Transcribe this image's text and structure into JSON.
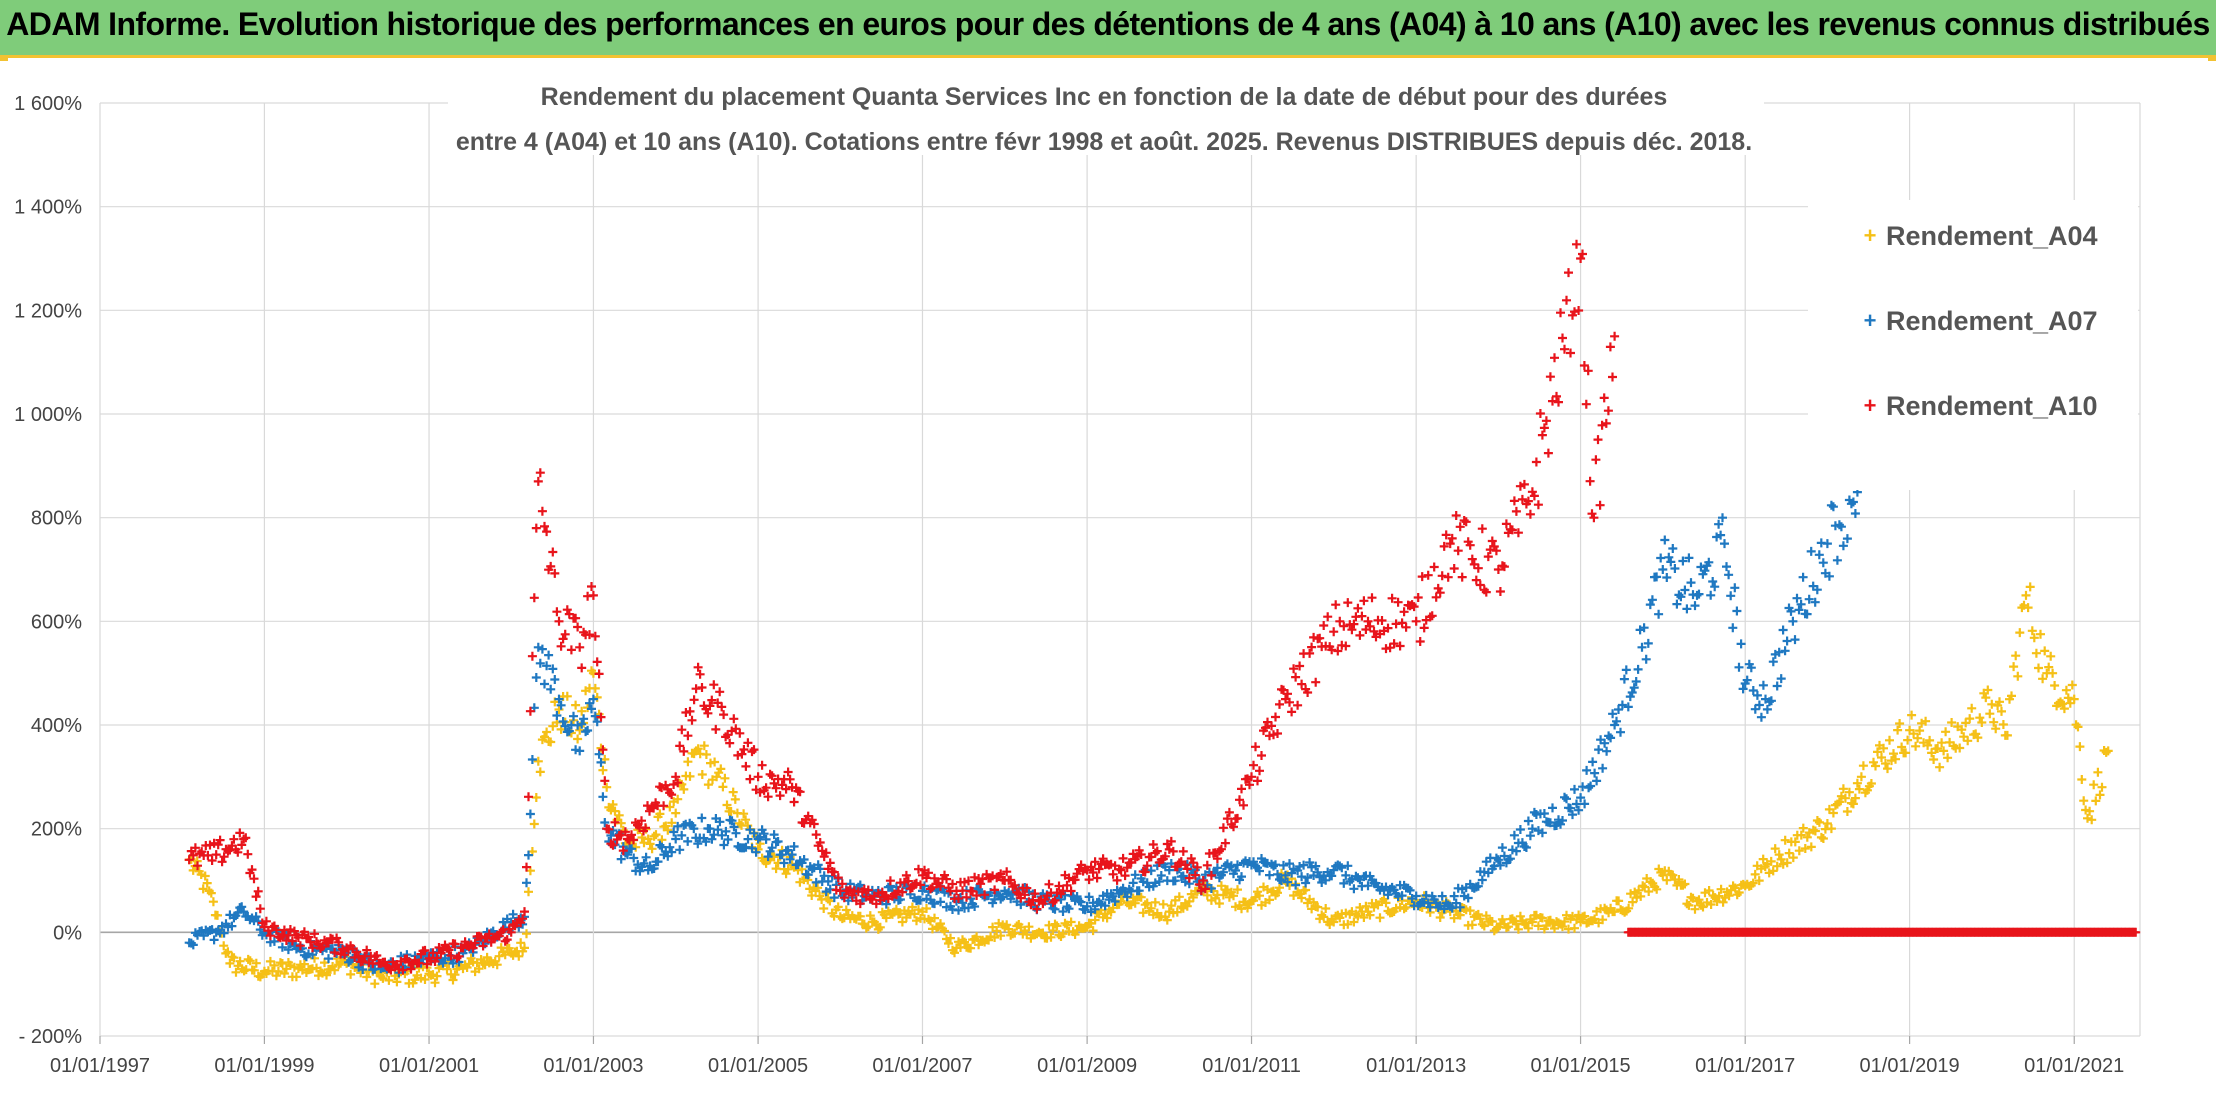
{
  "header": {
    "title": "ADAM Informe. Evolution historique des performances en euros pour des détentions de 4 ans (A04) à 10 ans (A10) avec les revenus connus distribués"
  },
  "colors": {
    "banner": "#7fcc7a",
    "accent": "#f2c232",
    "A04": "#f5c017",
    "A07": "#1f78c1",
    "A10": "#e8141b"
  },
  "chart_data": {
    "type": "scatter",
    "title_lines": [
      "Rendement du placement Quanta Services Inc en fonction de la date de début pour des durées",
      "entre 4 (A04) et 10 ans (A10). Cotations entre févr 1998 et août. 2025. Revenus DISTRIBUES depuis déc. 2018."
    ],
    "xlabel": "",
    "ylabel": "",
    "x_range": [
      "1997-01-01",
      "2021-10-20"
    ],
    "y_range": [
      -200,
      1600
    ],
    "y_ticks": [
      -200,
      0,
      200,
      400,
      600,
      800,
      1000,
      1200,
      1400,
      1600
    ],
    "y_tick_labels": [
      "- 200%",
      "0%",
      "200%",
      "400%",
      "600%",
      "800%",
      "1 000%",
      "1 200%",
      "1 400%",
      "1 600%"
    ],
    "x_ticks": [
      "1997-01-01",
      "1999-01-01",
      "2001-01-01",
      "2003-01-01",
      "2005-01-01",
      "2007-01-01",
      "2009-01-01",
      "2011-01-01",
      "2013-01-01",
      "2015-01-01",
      "2017-01-01",
      "2019-01-01",
      "2021-01-01"
    ],
    "x_tick_labels": [
      "01/01/1997",
      "01/01/1999",
      "01/01/2001",
      "01/01/2003",
      "01/01/2005",
      "01/01/2007",
      "01/01/2009",
      "01/01/2011",
      "01/01/2013",
      "01/01/2015",
      "01/01/2017",
      "01/01/2019",
      "01/01/2021"
    ],
    "grid": true,
    "legend_position": "top-right",
    "series": [
      {
        "name": "Rendement_A04",
        "color": "#f5c017",
        "points": [
          [
            "1998-02-01",
            140
          ],
          [
            "1998-05-01",
            80
          ],
          [
            "1998-08-01",
            -60
          ],
          [
            "1999-01-01",
            -75
          ],
          [
            "1999-06-01",
            -70
          ],
          [
            "2000-01-01",
            -60
          ],
          [
            "2000-06-01",
            -85
          ],
          [
            "2001-01-01",
            -80
          ],
          [
            "2001-06-01",
            -70
          ],
          [
            "2002-01-01",
            -40
          ],
          [
            "2002-03-01",
            -30
          ],
          [
            "2002-05-01",
            330
          ],
          [
            "2002-08-01",
            430
          ],
          [
            "2002-11-01",
            390
          ],
          [
            "2003-01-01",
            500
          ],
          [
            "2003-03-01",
            280
          ],
          [
            "2003-06-01",
            170
          ],
          [
            "2003-09-01",
            180
          ],
          [
            "2004-01-01",
            230
          ],
          [
            "2004-04-01",
            350
          ],
          [
            "2004-07-01",
            300
          ],
          [
            "2004-10-01",
            230
          ],
          [
            "2005-01-01",
            160
          ],
          [
            "2005-06-01",
            130
          ],
          [
            "2005-10-01",
            70
          ],
          [
            "2006-01-01",
            30
          ],
          [
            "2006-06-01",
            20
          ],
          [
            "2007-01-01",
            40
          ],
          [
            "2007-06-01",
            -30
          ],
          [
            "2008-01-01",
            10
          ],
          [
            "2008-06-01",
            0
          ],
          [
            "2009-01-01",
            10
          ],
          [
            "2009-06-01",
            60
          ],
          [
            "2010-01-01",
            40
          ],
          [
            "2010-06-01",
            80
          ],
          [
            "2011-01-01",
            60
          ],
          [
            "2011-06-01",
            100
          ],
          [
            "2012-01-01",
            20
          ],
          [
            "2012-06-01",
            40
          ],
          [
            "2013-01-01",
            60
          ],
          [
            "2013-06-01",
            40
          ],
          [
            "2014-01-01",
            10
          ],
          [
            "2014-06-01",
            20
          ],
          [
            "2015-01-01",
            20
          ],
          [
            "2015-06-01",
            40
          ],
          [
            "2016-01-01",
            110
          ],
          [
            "2016-06-01",
            60
          ],
          [
            "2017-01-01",
            90
          ],
          [
            "2017-06-01",
            150
          ],
          [
            "2018-01-01",
            210
          ],
          [
            "2018-06-01",
            300
          ],
          [
            "2019-01-01",
            390
          ],
          [
            "2019-06-01",
            350
          ],
          [
            "2020-01-01",
            440
          ],
          [
            "2020-03-01",
            380
          ],
          [
            "2020-06-01",
            650
          ],
          [
            "2020-09-01",
            500
          ],
          [
            "2021-01-01",
            450
          ],
          [
            "2021-03-01",
            220
          ],
          [
            "2021-06-01",
            350
          ]
        ]
      },
      {
        "name": "Rendement_A07",
        "color": "#1f78c1",
        "points": [
          [
            "1998-02-01",
            -20
          ],
          [
            "1998-06-01",
            0
          ],
          [
            "1998-10-01",
            40
          ],
          [
            "1999-01-01",
            0
          ],
          [
            "1999-06-01",
            -30
          ],
          [
            "2000-01-01",
            -40
          ],
          [
            "2000-06-01",
            -70
          ],
          [
            "2001-01-01",
            -50
          ],
          [
            "2001-06-01",
            -40
          ],
          [
            "2002-01-01",
            20
          ],
          [
            "2002-03-01",
            30
          ],
          [
            "2002-05-01",
            550
          ],
          [
            "2002-08-01",
            450
          ],
          [
            "2002-11-01",
            350
          ],
          [
            "2003-01-01",
            450
          ],
          [
            "2003-03-01",
            200
          ],
          [
            "2003-06-01",
            150
          ],
          [
            "2003-09-01",
            120
          ],
          [
            "2004-01-01",
            180
          ],
          [
            "2004-06-01",
            200
          ],
          [
            "2005-01-01",
            180
          ],
          [
            "2005-06-01",
            150
          ],
          [
            "2006-01-01",
            80
          ],
          [
            "2006-06-01",
            70
          ],
          [
            "2007-01-01",
            80
          ],
          [
            "2007-06-01",
            60
          ],
          [
            "2008-01-01",
            80
          ],
          [
            "2008-06-01",
            60
          ],
          [
            "2009-01-01",
            50
          ],
          [
            "2009-06-01",
            80
          ],
          [
            "2010-01-01",
            120
          ],
          [
            "2010-06-01",
            100
          ],
          [
            "2011-01-01",
            130
          ],
          [
            "2011-06-01",
            110
          ],
          [
            "2012-01-01",
            120
          ],
          [
            "2012-06-01",
            90
          ],
          [
            "2013-01-01",
            70
          ],
          [
            "2013-06-01",
            50
          ],
          [
            "2014-01-01",
            140
          ],
          [
            "2014-06-01",
            200
          ],
          [
            "2015-01-01",
            260
          ],
          [
            "2015-06-01",
            400
          ],
          [
            "2015-10-01",
            550
          ],
          [
            "2016-01-01",
            700
          ],
          [
            "2016-06-01",
            650
          ],
          [
            "2016-10-01",
            750
          ],
          [
            "2017-01-01",
            480
          ],
          [
            "2017-04-01",
            450
          ],
          [
            "2017-08-01",
            600
          ],
          [
            "2018-01-01",
            750
          ],
          [
            "2018-06-01",
            880
          ]
        ]
      },
      {
        "name": "Rendement_A10",
        "color": "#e8141b",
        "points": [
          [
            "1998-02-01",
            140
          ],
          [
            "1998-06-01",
            150
          ],
          [
            "1998-10-01",
            180
          ],
          [
            "1999-01-01",
            10
          ],
          [
            "1999-06-01",
            -10
          ],
          [
            "2000-01-01",
            -30
          ],
          [
            "2000-06-01",
            -60
          ],
          [
            "2001-01-01",
            -50
          ],
          [
            "2001-06-01",
            -30
          ],
          [
            "2002-01-01",
            0
          ],
          [
            "2002-03-01",
            40
          ],
          [
            "2002-05-01",
            870
          ],
          [
            "2002-08-01",
            600
          ],
          [
            "2002-11-01",
            550
          ],
          [
            "2003-01-01",
            650
          ],
          [
            "2003-03-01",
            200
          ],
          [
            "2003-06-01",
            180
          ],
          [
            "2004-01-01",
            300
          ],
          [
            "2004-04-01",
            470
          ],
          [
            "2004-08-01",
            420
          ],
          [
            "2005-01-01",
            300
          ],
          [
            "2005-06-01",
            280
          ],
          [
            "2006-01-01",
            80
          ],
          [
            "2006-06-01",
            70
          ],
          [
            "2007-01-01",
            110
          ],
          [
            "2007-06-01",
            80
          ],
          [
            "2008-01-01",
            100
          ],
          [
            "2008-06-01",
            60
          ],
          [
            "2009-01-01",
            120
          ],
          [
            "2009-06-01",
            120
          ],
          [
            "2010-01-01",
            160
          ],
          [
            "2010-06-01",
            100
          ],
          [
            "2011-01-01",
            300
          ],
          [
            "2011-06-01",
            450
          ],
          [
            "2012-01-01",
            580
          ],
          [
            "2012-06-01",
            600
          ],
          [
            "2013-01-01",
            600
          ],
          [
            "2013-06-01",
            750
          ],
          [
            "2014-01-01",
            700
          ],
          [
            "2014-06-01",
            850
          ],
          [
            "2015-01-01",
            1300
          ],
          [
            "2015-03-01",
            800
          ],
          [
            "2015-06-01",
            1150
          ]
        ],
        "tail": {
          "from": "2015-08-01",
          "to": "2021-10-01",
          "value": 0
        }
      }
    ]
  }
}
